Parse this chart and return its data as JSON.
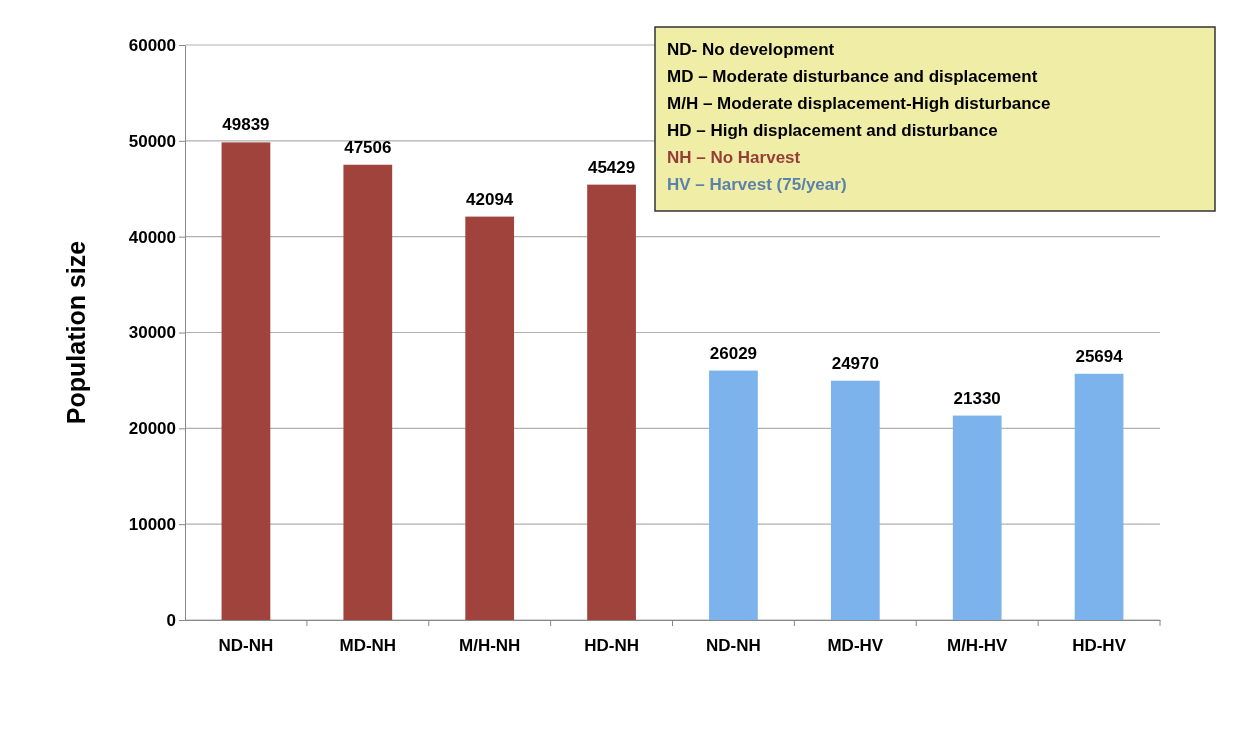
{
  "chart_data": {
    "type": "bar",
    "ylabel": "Population size",
    "categories": [
      "ND-NH",
      "MD-NH",
      "M/H-NH",
      "HD-NH",
      "ND-NH",
      "MD-HV",
      "M/H-HV",
      "HD-HV"
    ],
    "values": [
      49839,
      47506,
      42094,
      45429,
      26029,
      24970,
      21330,
      25694
    ],
    "colors": [
      "#a0433d",
      "#a0433d",
      "#a0433d",
      "#a0433d",
      "#7db3ec",
      "#7db3ec",
      "#7db3ec",
      "#7db3ec"
    ],
    "ylim": [
      0,
      60000
    ],
    "yticks": [
      0,
      10000,
      20000,
      30000,
      40000,
      50000,
      60000
    ],
    "grid": "y",
    "data_labels": true,
    "annotations": [
      "ND- No development",
      "MD – Moderate disturbance and displacement",
      "M/H – Moderate displacement-High disturbance",
      "HD – High displacement and disturbance",
      "NH – No Harvest",
      "HV – Harvest (75/year)"
    ]
  }
}
